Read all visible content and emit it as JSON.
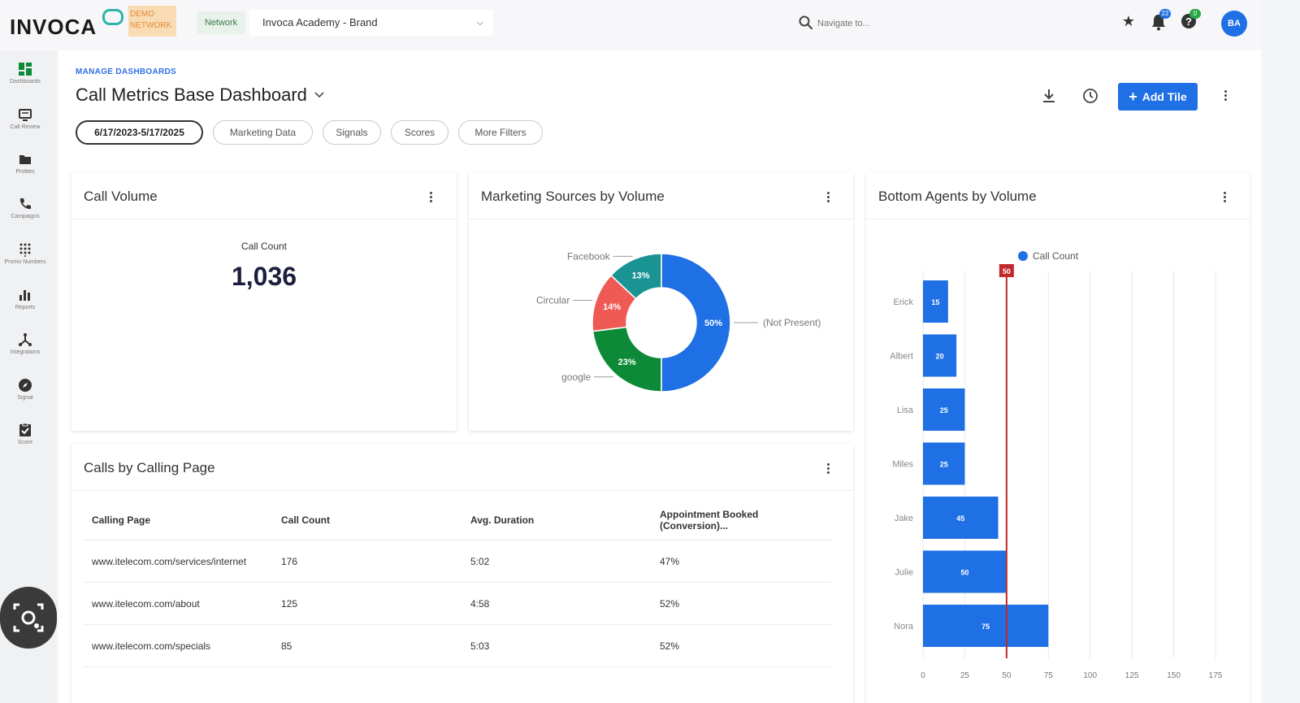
{
  "header": {
    "logo_text": "INVOCA",
    "demo_badge": "DEMO NETWORK",
    "network_label": "Network",
    "network_selected": "Invoca Academy - Brand",
    "search_placeholder": "Navigate to...",
    "notifications_count": "22",
    "help_badge": "0",
    "avatar_initials": "BA"
  },
  "colors": {
    "primary": "#1f6fe5",
    "teal": "#1a9393",
    "red": "#f05a55",
    "green": "#0d8a37",
    "target_line": "#c0282a"
  },
  "sidebar": {
    "items": [
      {
        "label": "Dashboards",
        "icon": "dashboard-icon"
      },
      {
        "label": "Call Review",
        "icon": "call-review-icon"
      },
      {
        "label": "Profiles",
        "icon": "folder-icon"
      },
      {
        "label": "Campaigns",
        "icon": "phone-icon"
      },
      {
        "label": "Promo Numbers",
        "icon": "keypad-icon"
      },
      {
        "label": "Reports",
        "icon": "bar-chart-icon"
      },
      {
        "label": "Integrations",
        "icon": "integrations-icon"
      },
      {
        "label": "Signal",
        "icon": "compass-icon"
      },
      {
        "label": "Score",
        "icon": "clipboard-check-icon"
      }
    ]
  },
  "page": {
    "breadcrumb": "MANAGE DASHBOARDS",
    "title": "Call Metrics Base Dashboard",
    "add_tile_label": "Add Tile"
  },
  "filters": [
    "6/17/2023-5/17/2025",
    "Marketing Data",
    "Signals",
    "Scores",
    "More Filters"
  ],
  "cards": {
    "call_volume": {
      "title": "Call Volume",
      "metric_label": "Call Count",
      "metric_value": "1,036"
    },
    "marketing_sources": {
      "title": "Marketing Sources by Volume"
    },
    "bottom_agents": {
      "title": "Bottom Agents by Volume"
    },
    "calls_by_page": {
      "title": "Calls by Calling Page",
      "columns": [
        "Calling Page",
        "Call Count",
        "Avg. Duration",
        "Appointment Booked (Conversion)..."
      ],
      "rows": [
        [
          "www.itelecom.com/services/internet",
          "176",
          "5:02",
          "47%"
        ],
        [
          "www.itelecom.com/about",
          "125",
          "4:58",
          "52%"
        ],
        [
          "www.itelecom.com/specials",
          "85",
          "5:03",
          "52%"
        ]
      ]
    }
  },
  "chart_data": [
    {
      "type": "pie",
      "donut": true,
      "labels": [
        "(Not Present)",
        "google",
        "Circular",
        "Facebook"
      ],
      "values": [
        50,
        23,
        14,
        13
      ],
      "value_labels": [
        "50%",
        "23%",
        "14%",
        "13%"
      ],
      "colors": [
        "#1f6fe5",
        "#0d8a37",
        "#f05a55",
        "#1a9393"
      ]
    },
    {
      "type": "bar",
      "orientation": "horizontal",
      "categories": [
        "Erick",
        "Albert",
        "Lisa",
        "Miles",
        "Jake",
        "Julie",
        "Nora"
      ],
      "series": [
        {
          "name": "Call Count",
          "values": [
            15,
            20,
            25,
            25,
            45,
            50,
            75
          ]
        }
      ],
      "xlim": [
        0,
        175
      ],
      "x_ticks": [
        0,
        25,
        50,
        75,
        100,
        125,
        150,
        175
      ],
      "reference_line": {
        "value": 50,
        "label": "50"
      },
      "legend": "top",
      "grid": true
    }
  ]
}
